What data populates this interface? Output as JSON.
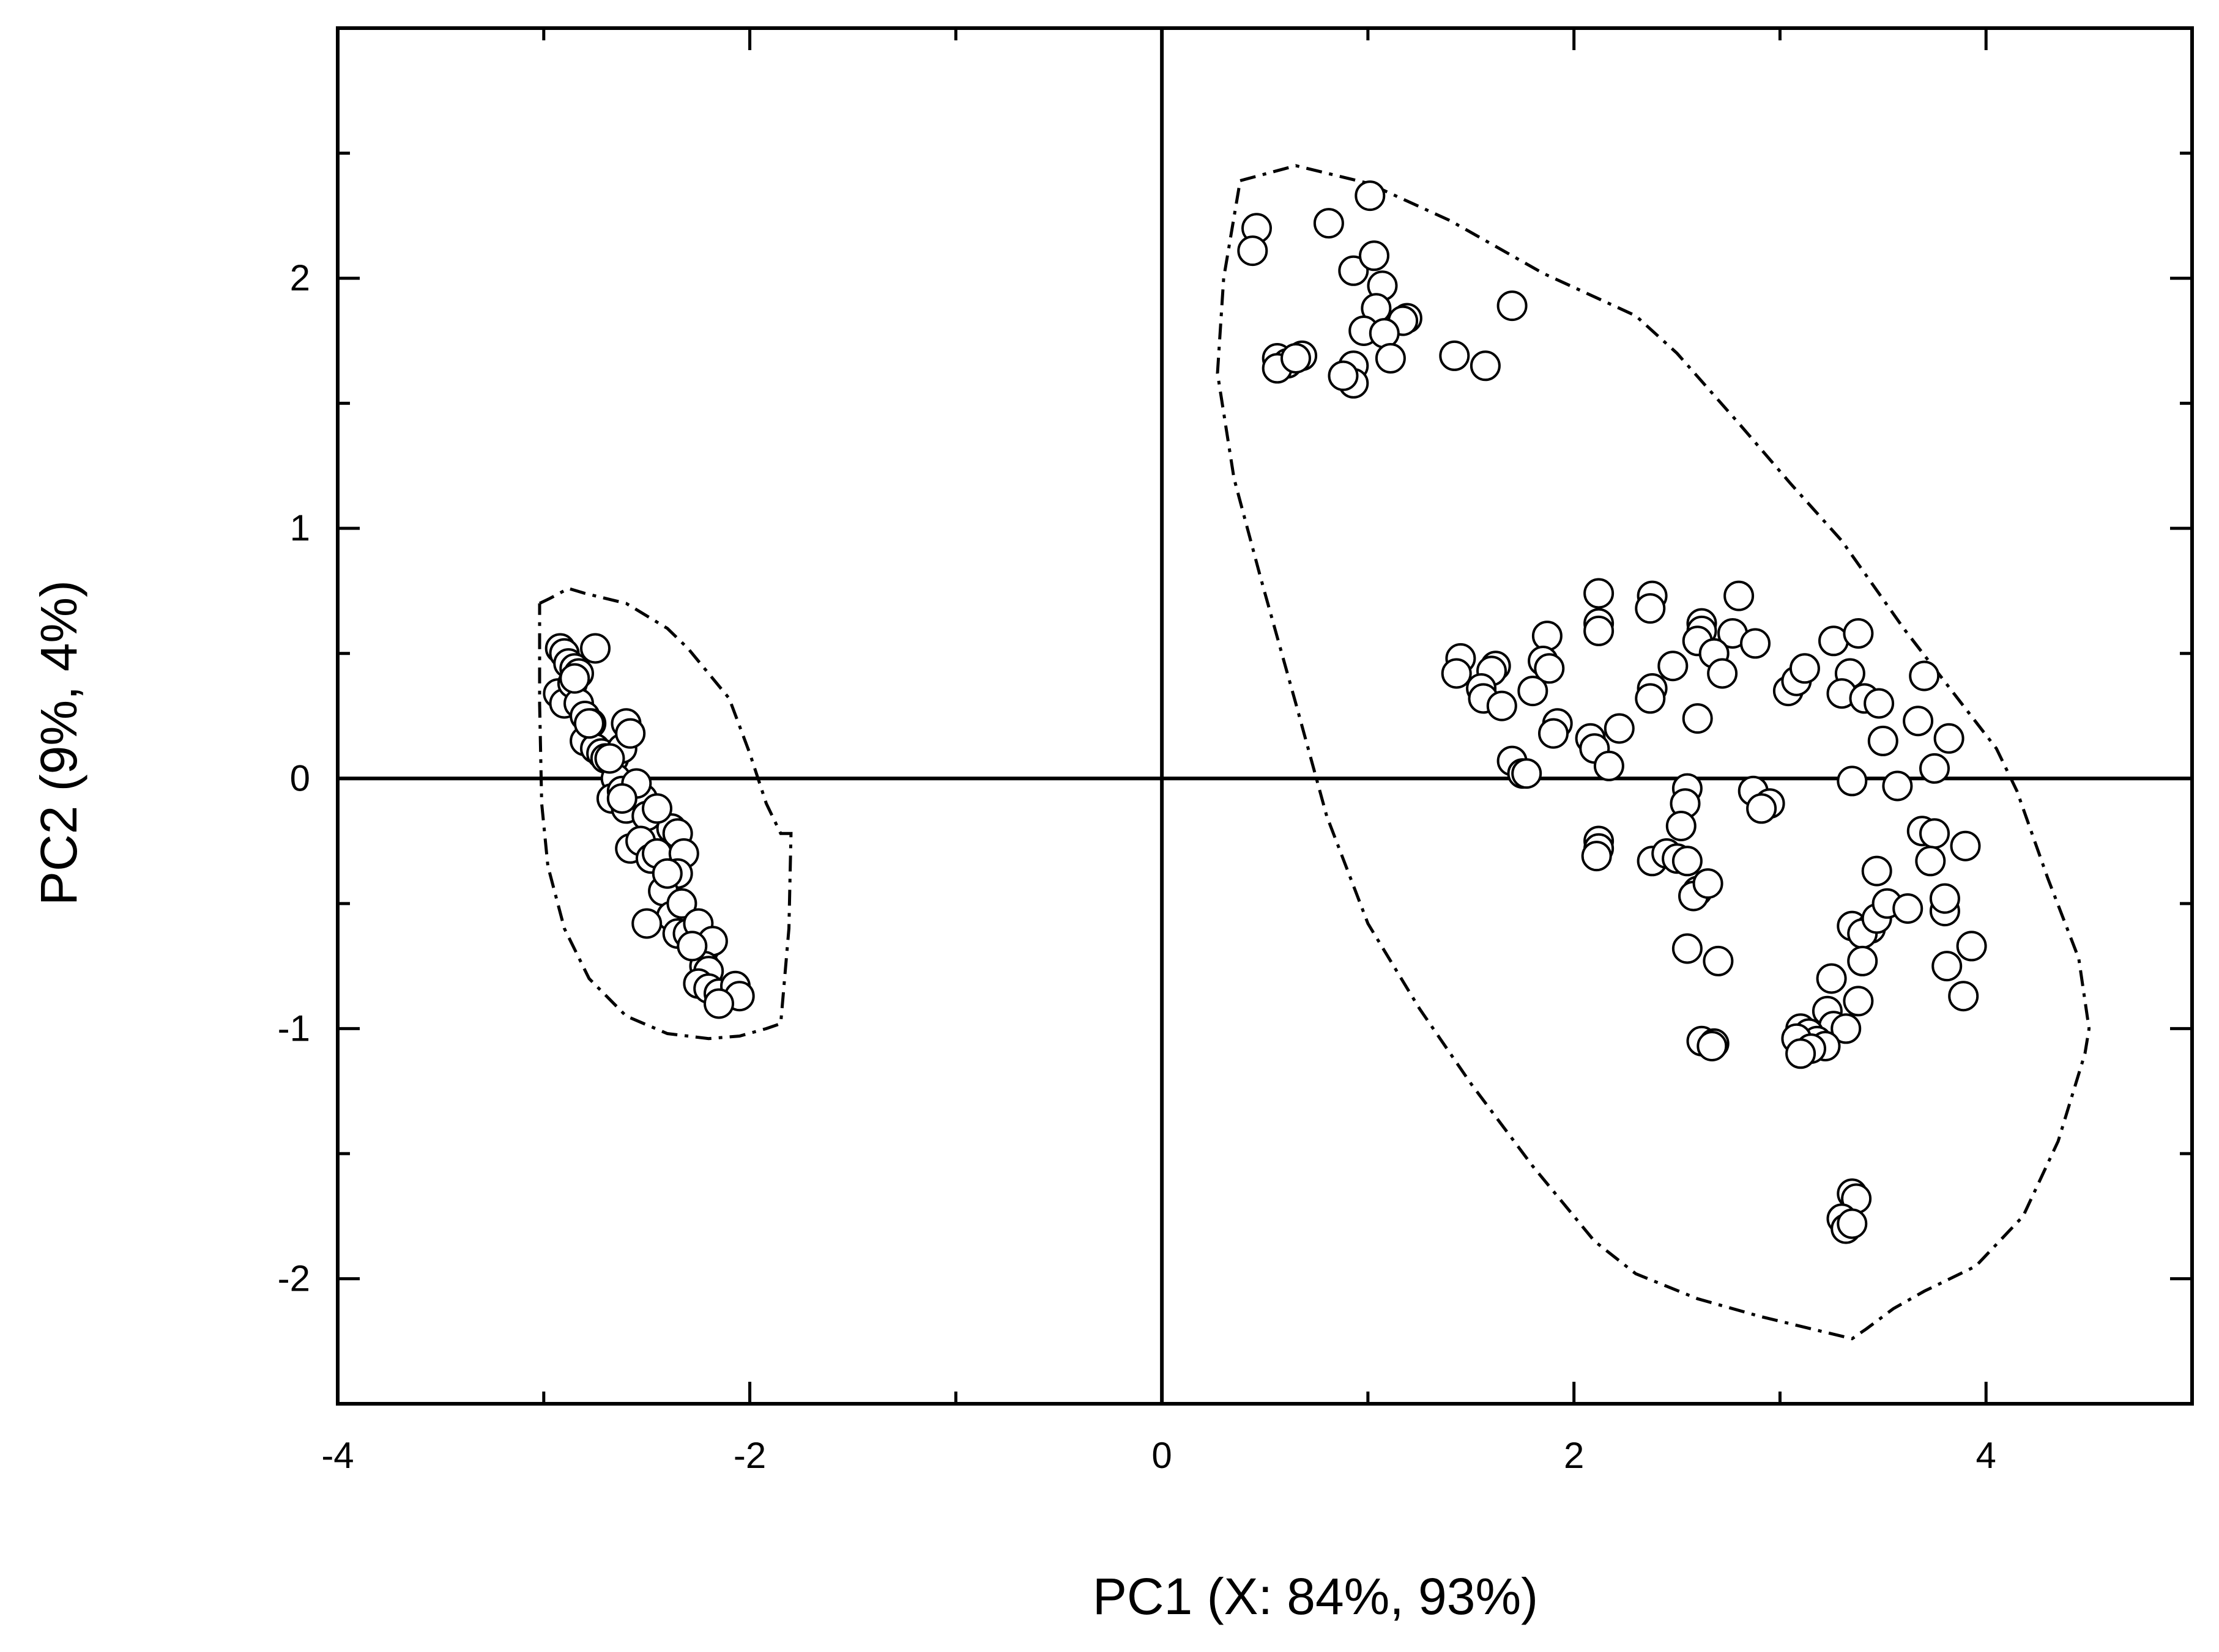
{
  "chart_data": {
    "type": "scatter",
    "title": "",
    "xlabel": "PC1 (X: 84%, 93%)",
    "ylabel": "PC2 (9%, 4%)",
    "xlim": [
      -4,
      5
    ],
    "ylim": [
      -2.5,
      3.0
    ],
    "x_ticks": [
      -4,
      -2,
      0,
      2,
      4
    ],
    "y_ticks": [
      -2,
      -1,
      0,
      1,
      2
    ],
    "grid": false,
    "reference_lines": {
      "x": 0,
      "y": 0
    },
    "marker": {
      "shape": "circle",
      "fill": "#ffffff",
      "stroke": "#000000"
    },
    "groups": [
      {
        "points": [
          [
            -2.92,
            0.52
          ],
          [
            -2.9,
            0.5
          ],
          [
            -2.88,
            0.46
          ],
          [
            -2.85,
            0.44
          ],
          [
            -2.83,
            0.42
          ],
          [
            -2.75,
            0.52
          ],
          [
            -2.93,
            0.34
          ],
          [
            -2.9,
            0.3
          ],
          [
            -2.86,
            0.38
          ],
          [
            -2.83,
            0.3
          ],
          [
            -2.8,
            0.25
          ],
          [
            -2.77,
            0.22
          ],
          [
            -2.8,
            0.15
          ],
          [
            -2.75,
            0.12
          ],
          [
            -2.72,
            0.1
          ],
          [
            -2.7,
            0.08
          ],
          [
            -2.66,
            0.08
          ],
          [
            -2.62,
            0.12
          ],
          [
            -2.6,
            0.22
          ],
          [
            -2.58,
            0.18
          ],
          [
            -2.65,
            0.0
          ],
          [
            -2.67,
            -0.08
          ],
          [
            -2.62,
            -0.05
          ],
          [
            -2.6,
            -0.12
          ],
          [
            -2.55,
            -0.05
          ],
          [
            -2.52,
            -0.08
          ],
          [
            -2.5,
            -0.15
          ],
          [
            -2.58,
            -0.28
          ],
          [
            -2.53,
            -0.25
          ],
          [
            -2.48,
            -0.32
          ],
          [
            -2.45,
            -0.3
          ],
          [
            -2.38,
            -0.2
          ],
          [
            -2.35,
            -0.22
          ],
          [
            -2.32,
            -0.3
          ],
          [
            -2.35,
            -0.38
          ],
          [
            -2.42,
            -0.45
          ],
          [
            -2.38,
            -0.55
          ],
          [
            -2.33,
            -0.5
          ],
          [
            -2.5,
            -0.58
          ],
          [
            -2.35,
            -0.62
          ],
          [
            -2.3,
            -0.62
          ],
          [
            -2.25,
            -0.58
          ],
          [
            -2.22,
            -0.68
          ],
          [
            -2.18,
            -0.65
          ],
          [
            -2.22,
            -0.75
          ],
          [
            -2.2,
            -0.77
          ],
          [
            -2.25,
            -0.82
          ],
          [
            -2.2,
            -0.84
          ],
          [
            -2.15,
            -0.86
          ],
          [
            -2.07,
            -0.83
          ],
          [
            -2.05,
            -0.87
          ],
          [
            -2.15,
            -0.9
          ],
          [
            -2.78,
            0.22
          ],
          [
            -2.68,
            0.08
          ],
          [
            -2.55,
            -0.02
          ],
          [
            -2.45,
            -0.12
          ],
          [
            -2.4,
            -0.38
          ],
          [
            -2.28,
            -0.67
          ],
          [
            -2.62,
            -0.08
          ],
          [
            -2.85,
            0.4
          ]
        ],
        "hull": [
          [
            -3.02,
            0.7
          ],
          [
            -2.97,
            0.72
          ],
          [
            -2.88,
            0.76
          ],
          [
            -2.8,
            0.74
          ],
          [
            -2.6,
            0.7
          ],
          [
            -2.4,
            0.6
          ],
          [
            -2.3,
            0.52
          ],
          [
            -2.1,
            0.32
          ],
          [
            -2.0,
            0.1
          ],
          [
            -1.92,
            -0.1
          ],
          [
            -1.85,
            -0.22
          ],
          [
            -1.8,
            -0.22
          ],
          [
            -1.81,
            -0.6
          ],
          [
            -1.85,
            -0.98
          ],
          [
            -1.92,
            -1.0
          ],
          [
            -2.05,
            -1.03
          ],
          [
            -2.2,
            -1.04
          ],
          [
            -2.4,
            -1.02
          ],
          [
            -2.6,
            -0.95
          ],
          [
            -2.78,
            -0.8
          ],
          [
            -2.9,
            -0.6
          ],
          [
            -2.98,
            -0.35
          ],
          [
            -3.01,
            -0.1
          ],
          [
            -3.02,
            0.3
          ],
          [
            -3.02,
            0.7
          ]
        ]
      },
      {
        "points": [
          [
            0.46,
            2.2
          ],
          [
            0.44,
            2.11
          ],
          [
            0.81,
            2.22
          ],
          [
            1.01,
            2.33
          ],
          [
            0.93,
            2.03
          ],
          [
            1.03,
            2.09
          ],
          [
            1.07,
            1.97
          ],
          [
            1.04,
            1.88
          ],
          [
            1.19,
            1.84
          ],
          [
            1.17,
            1.83
          ],
          [
            0.98,
            1.79
          ],
          [
            1.08,
            1.78
          ],
          [
            1.7,
            1.89
          ],
          [
            0.56,
            1.68
          ],
          [
            0.61,
            1.66
          ],
          [
            0.56,
            1.64
          ],
          [
            0.68,
            1.69
          ],
          [
            0.65,
            1.68
          ],
          [
            0.93,
            1.65
          ],
          [
            0.93,
            1.58
          ],
          [
            0.88,
            1.61
          ],
          [
            1.11,
            1.68
          ],
          [
            1.42,
            1.69
          ],
          [
            1.57,
            1.65
          ],
          [
            2.12,
            0.74
          ],
          [
            2.12,
            0.62
          ],
          [
            2.12,
            0.59
          ],
          [
            2.38,
            0.73
          ],
          [
            2.37,
            0.68
          ],
          [
            2.62,
            0.62
          ],
          [
            2.62,
            0.59
          ],
          [
            2.8,
            0.73
          ],
          [
            2.77,
            0.58
          ],
          [
            2.6,
            0.55
          ],
          [
            2.68,
            0.5
          ],
          [
            2.72,
            0.42
          ],
          [
            2.88,
            0.54
          ],
          [
            3.26,
            0.55
          ],
          [
            3.38,
            0.58
          ],
          [
            1.87,
            0.57
          ],
          [
            1.85,
            0.47
          ],
          [
            1.88,
            0.44
          ],
          [
            1.45,
            0.48
          ],
          [
            1.43,
            0.42
          ],
          [
            1.62,
            0.45
          ],
          [
            1.6,
            0.43
          ],
          [
            1.55,
            0.36
          ],
          [
            1.56,
            0.32
          ],
          [
            1.65,
            0.29
          ],
          [
            1.8,
            0.35
          ],
          [
            2.38,
            0.36
          ],
          [
            2.37,
            0.32
          ],
          [
            2.48,
            0.45
          ],
          [
            3.04,
            0.35
          ],
          [
            3.08,
            0.39
          ],
          [
            3.12,
            0.44
          ],
          [
            3.34,
            0.42
          ],
          [
            3.3,
            0.34
          ],
          [
            3.41,
            0.32
          ],
          [
            3.48,
            0.3
          ],
          [
            3.7,
            0.41
          ],
          [
            1.92,
            0.22
          ],
          [
            1.9,
            0.18
          ],
          [
            2.08,
            0.16
          ],
          [
            2.1,
            0.12
          ],
          [
            2.22,
            0.2
          ],
          [
            2.17,
            0.05
          ],
          [
            2.6,
            0.24
          ],
          [
            1.7,
            0.07
          ],
          [
            1.75,
            0.02
          ],
          [
            1.77,
            0.02
          ],
          [
            3.5,
            0.15
          ],
          [
            3.67,
            0.23
          ],
          [
            3.82,
            0.16
          ],
          [
            3.75,
            0.04
          ],
          [
            3.35,
            -0.01
          ],
          [
            3.57,
            -0.03
          ],
          [
            2.55,
            -0.04
          ],
          [
            2.54,
            -0.1
          ],
          [
            2.87,
            -0.05
          ],
          [
            2.95,
            -0.1
          ],
          [
            2.91,
            -0.12
          ],
          [
            2.52,
            -0.19
          ],
          [
            2.12,
            -0.25
          ],
          [
            2.12,
            -0.28
          ],
          [
            2.11,
            -0.31
          ],
          [
            2.38,
            -0.33
          ],
          [
            2.45,
            -0.3
          ],
          [
            2.5,
            -0.32
          ],
          [
            2.55,
            -0.33
          ],
          [
            3.69,
            -0.21
          ],
          [
            3.75,
            -0.22
          ],
          [
            3.73,
            -0.33
          ],
          [
            3.9,
            -0.27
          ],
          [
            3.47,
            -0.37
          ],
          [
            2.6,
            -0.45
          ],
          [
            2.58,
            -0.47
          ],
          [
            2.65,
            -0.42
          ],
          [
            2.55,
            -0.68
          ],
          [
            2.7,
            -0.73
          ],
          [
            3.35,
            -0.59
          ],
          [
            3.44,
            -0.6
          ],
          [
            3.4,
            -0.62
          ],
          [
            3.47,
            -0.56
          ],
          [
            3.52,
            -0.5
          ],
          [
            3.62,
            -0.52
          ],
          [
            3.8,
            -0.53
          ],
          [
            3.8,
            -0.48
          ],
          [
            3.93,
            -0.67
          ],
          [
            3.81,
            -0.75
          ],
          [
            3.4,
            -0.73
          ],
          [
            3.25,
            -0.8
          ],
          [
            3.89,
            -0.87
          ],
          [
            3.38,
            -0.89
          ],
          [
            3.23,
            -0.93
          ],
          [
            3.26,
            -0.99
          ],
          [
            3.32,
            -1.0
          ],
          [
            3.1,
            -1.0
          ],
          [
            3.14,
            -1.02
          ],
          [
            3.18,
            -1.05
          ],
          [
            3.08,
            -1.04
          ],
          [
            3.22,
            -1.07
          ],
          [
            3.15,
            -1.08
          ],
          [
            3.1,
            -1.1
          ],
          [
            2.62,
            -1.05
          ],
          [
            2.68,
            -1.06
          ],
          [
            2.67,
            -1.07
          ],
          [
            3.35,
            -1.66
          ],
          [
            3.37,
            -1.68
          ],
          [
            3.3,
            -1.76
          ],
          [
            3.32,
            -1.8
          ],
          [
            3.35,
            -1.78
          ]
        ],
        "hull": [
          [
            0.38,
            2.39
          ],
          [
            0.65,
            2.45
          ],
          [
            1.0,
            2.38
          ],
          [
            1.4,
            2.23
          ],
          [
            1.85,
            2.02
          ],
          [
            2.3,
            1.85
          ],
          [
            2.5,
            1.7
          ],
          [
            2.8,
            1.42
          ],
          [
            3.05,
            1.18
          ],
          [
            3.3,
            0.95
          ],
          [
            3.6,
            0.6
          ],
          [
            3.9,
            0.28
          ],
          [
            4.05,
            0.12
          ],
          [
            4.15,
            -0.05
          ],
          [
            4.3,
            -0.4
          ],
          [
            4.45,
            -0.72
          ],
          [
            4.5,
            -1.0
          ],
          [
            4.48,
            -1.1
          ],
          [
            4.35,
            -1.45
          ],
          [
            4.18,
            -1.75
          ],
          [
            3.95,
            -1.95
          ],
          [
            3.7,
            -2.05
          ],
          [
            3.55,
            -2.12
          ],
          [
            3.42,
            -2.2
          ],
          [
            3.35,
            -2.24
          ],
          [
            3.15,
            -2.2
          ],
          [
            2.9,
            -2.15
          ],
          [
            2.6,
            -2.08
          ],
          [
            2.3,
            -1.98
          ],
          [
            2.1,
            -1.85
          ],
          [
            1.8,
            -1.55
          ],
          [
            1.5,
            -1.22
          ],
          [
            1.25,
            -0.92
          ],
          [
            1.0,
            -0.58
          ],
          [
            0.8,
            -0.15
          ],
          [
            0.65,
            0.3
          ],
          [
            0.48,
            0.8
          ],
          [
            0.35,
            1.2
          ],
          [
            0.27,
            1.62
          ],
          [
            0.3,
            2.0
          ],
          [
            0.38,
            2.39
          ]
        ]
      }
    ]
  }
}
